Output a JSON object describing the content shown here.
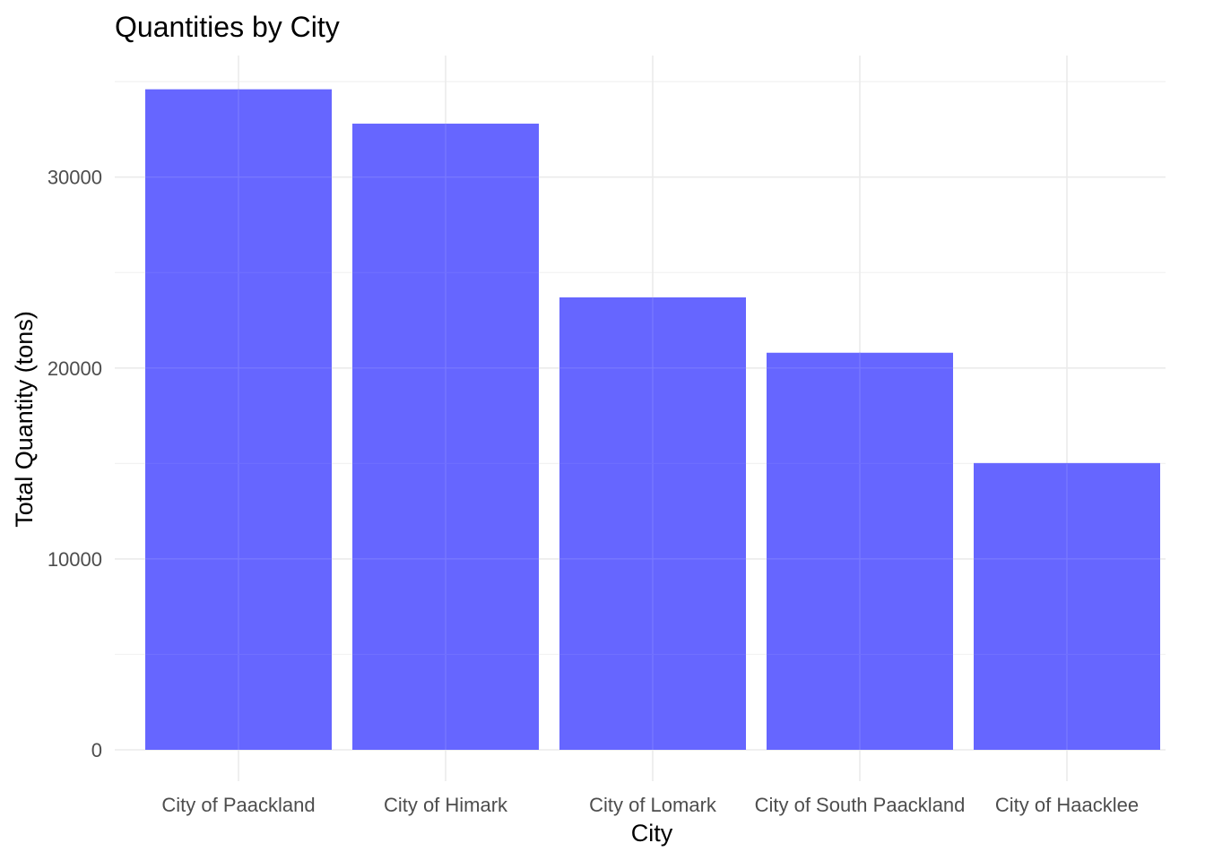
{
  "chart_data": {
    "type": "bar",
    "title": "Quantities by City",
    "xlabel": "City",
    "ylabel": "Total Quantity (tons)",
    "categories": [
      "City of Paackland",
      "City of Himark",
      "City of Lomark",
      "City of South Paackland",
      "City of Haacklee"
    ],
    "values": [
      34600,
      32800,
      23700,
      20800,
      15000
    ],
    "ylim": [
      0,
      36300
    ],
    "yticks": [
      0,
      10000,
      20000,
      30000
    ],
    "ytick_labels": [
      "0",
      "10000",
      "20000",
      "30000"
    ],
    "bar_color": "#6666ff",
    "grid": true,
    "legend": "none"
  }
}
